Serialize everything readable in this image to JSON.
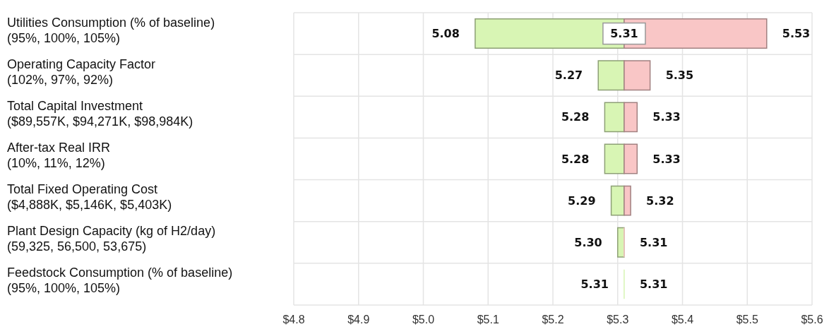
{
  "chart_data": {
    "type": "bar",
    "orientation": "horizontal",
    "categories": [
      "Utilities Consumption (% of baseline)\n(95%, 100%, 105%)",
      "Operating Capacity Factor\n(102%, 97%, 92%)",
      "Total Capital Investment\n($89,557K, $94,271K, $98,984K)",
      "After-tax Real IRR\n(10%, 11%, 12%)",
      "Total Fixed Operating Cost\n($4,888K, $5,146K, $5,403K)",
      "Plant Design Capacity (kg of H2/day)\n(59,325, 56,500, 53,675)",
      "Feedstock Consumption (% of baseline)\n(95%, 100%, 105%)"
    ],
    "series": [
      {
        "color": "#d8f5b4",
        "values": [
          0.23,
          0.04,
          0.03,
          0.03,
          0.02,
          0.01,
          0
        ],
        "base": [
          5.08,
          5.27,
          5.28,
          5.28,
          5.29,
          5.3,
          5.31
        ]
      },
      {
        "color": "#f9c6c6",
        "values": [
          0.22,
          0.04,
          0.02,
          0.02,
          0.01,
          0,
          null
        ],
        "base": [
          5.31,
          5.31,
          5.31,
          5.31,
          5.31,
          5.31,
          null
        ]
      }
    ],
    "xlim": [
      4.8,
      5.6
    ],
    "xticks": [
      {
        "value": 4.8,
        "label": "$4.8"
      },
      {
        "value": 4.9,
        "label": "$4.9"
      },
      {
        "value": 5.0,
        "label": "$5.0"
      },
      {
        "value": 5.1,
        "label": "$5.1"
      },
      {
        "value": 5.2,
        "label": "$5.2"
      },
      {
        "value": 5.3,
        "label": "$5.3"
      },
      {
        "value": 5.4,
        "label": "$5.4"
      },
      {
        "value": 5.5,
        "label": "$5.5"
      },
      {
        "value": 5.6,
        "label": "$5.6"
      }
    ],
    "grid": true,
    "annotations": [
      {
        "text": "5.08",
        "x": 5.08,
        "y": "Utilities Consumption (% of baseline)\n(95%, 100%, 105%)"
      },
      {
        "text": "5.31",
        "x": 5.31,
        "y": "Utilities Consumption (% of baseline)\n(95%, 100%, 105%)"
      },
      {
        "text": "5.53",
        "x": 5.53,
        "y": "Utilities Consumption (% of baseline)\n(95%, 100%, 105%)"
      },
      {
        "text": "5.27",
        "x": 5.27,
        "y": "Operating Capacity Factor\n(102%, 97%, 92%)"
      },
      {
        "text": "5.35",
        "x": 5.35,
        "y": "Operating Capacity Factor\n(102%, 97%, 92%)"
      },
      {
        "text": "5.28",
        "x": 5.28,
        "y": "Total Capital Investment\n($89,557K, $94,271K, $98,984K)"
      },
      {
        "text": "5.33",
        "x": 5.33,
        "y": "Total Capital Investment\n($89,557K, $94,271K, $98,984K)"
      },
      {
        "text": "5.28",
        "x": 5.28,
        "y": "After-tax Real IRR\n(10%, 11%, 12%)"
      },
      {
        "text": "5.33",
        "x": 5.33,
        "y": "After-tax Real IRR\n(10%, 11%, 12%)"
      },
      {
        "text": "5.29",
        "x": 5.29,
        "y": "Total Fixed Operating Cost\n($4,888K, $5,146K, $5,403K)"
      },
      {
        "text": "5.32",
        "x": 5.32,
        "y": "Total Fixed Operating Cost\n($4,888K, $5,146K, $5,403K)"
      },
      {
        "text": "5.30",
        "x": 5.3,
        "y": "Plant Design Capacity (kg of H2/day)\n(59,325, 56,500, 53,675)"
      },
      {
        "text": "5.31",
        "x": 5.31,
        "y": "Plant Design Capacity (kg of H2/day)\n(59,325, 56,500, 53,675)"
      },
      {
        "text": "5.31",
        "x": 5.31,
        "y": "Feedstock Consumption (% of baseline)\n(95%, 100%, 105%)"
      },
      {
        "text": "5.31",
        "x": 5.31,
        "y": "Feedstock Consumption (% of baseline)\n(95%, 100%, 105%)"
      }
    ]
  }
}
